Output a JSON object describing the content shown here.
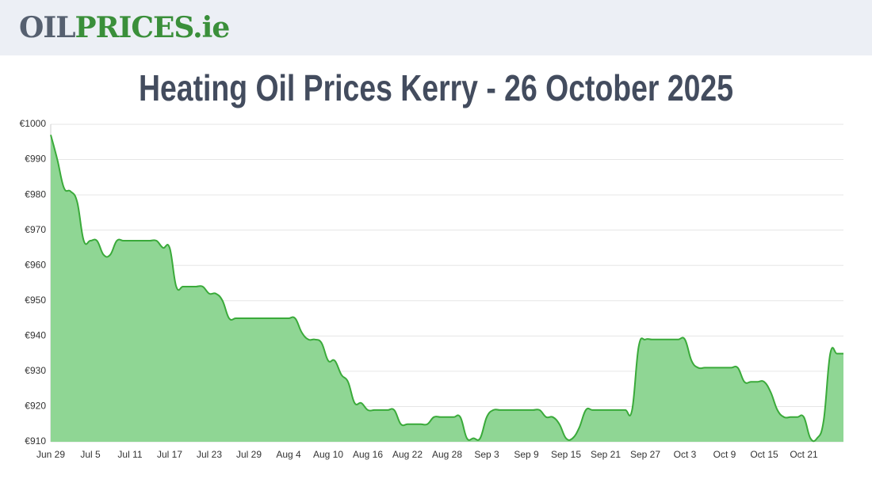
{
  "header": {
    "logo_main": "OIL",
    "logo_accent": "PRICES.ie"
  },
  "chart_data": {
    "type": "area",
    "title": "Heating Oil Prices Kerry - 26 October 2025",
    "color": "#3aaa3a",
    "fill": "#8fd694",
    "grid": true,
    "ylim": [
      910,
      1000
    ],
    "yticks": [
      {
        "value": 910,
        "label": "€910"
      },
      {
        "value": 920,
        "label": "€920"
      },
      {
        "value": 930,
        "label": "€930"
      },
      {
        "value": 940,
        "label": "€940"
      },
      {
        "value": 950,
        "label": "€950"
      },
      {
        "value": 960,
        "label": "€960"
      },
      {
        "value": 970,
        "label": "€970"
      },
      {
        "value": 980,
        "label": "€980"
      },
      {
        "value": 990,
        "label": "€990"
      },
      {
        "value": 1000,
        "label": "€1000"
      }
    ],
    "categories": [
      "Jun 29",
      null,
      null,
      null,
      null,
      null,
      "Jul 5",
      null,
      null,
      null,
      null,
      null,
      "Jul 11",
      null,
      null,
      null,
      null,
      null,
      "Jul 17",
      null,
      null,
      null,
      null,
      null,
      "Jul 23",
      null,
      null,
      null,
      null,
      null,
      "Jul 29",
      null,
      null,
      null,
      null,
      null,
      "Aug 4",
      null,
      null,
      null,
      null,
      null,
      "Aug 10",
      null,
      null,
      null,
      null,
      null,
      "Aug 16",
      null,
      null,
      null,
      null,
      null,
      "Aug 22",
      null,
      null,
      null,
      null,
      null,
      "Aug 28",
      null,
      null,
      null,
      null,
      null,
      "Sep 3",
      null,
      null,
      null,
      null,
      null,
      "Sep 9",
      null,
      null,
      null,
      null,
      null,
      "Sep 15",
      null,
      null,
      null,
      null,
      null,
      "Sep 21",
      null,
      null,
      null,
      null,
      null,
      "Sep 27",
      null,
      null,
      null,
      null,
      null,
      "Oct 3",
      null,
      null,
      null,
      null,
      null,
      "Oct 9",
      null,
      null,
      null,
      null,
      null,
      "Oct 15",
      null,
      null,
      null,
      null,
      null,
      "Oct 21",
      null,
      null,
      null,
      null,
      null,
      null
    ],
    "values": [
      997,
      990,
      982,
      981,
      978,
      967,
      967,
      967,
      963,
      963,
      967,
      967,
      967,
      967,
      967,
      967,
      967,
      965,
      965,
      954,
      954,
      954,
      954,
      954,
      952,
      952,
      950,
      945,
      945,
      945,
      945,
      945,
      945,
      945,
      945,
      945,
      945,
      945,
      941,
      939,
      939,
      938,
      933,
      933,
      929,
      927,
      921,
      921,
      919,
      919,
      919,
      919,
      919,
      915,
      915,
      915,
      915,
      915,
      917,
      917,
      917,
      917,
      917,
      911,
      911,
      911,
      917,
      919,
      919,
      919,
      919,
      919,
      919,
      919,
      919,
      917,
      917,
      915,
      911,
      911,
      914,
      919,
      919,
      919,
      919,
      919,
      919,
      919,
      919,
      937,
      939,
      939,
      939,
      939,
      939,
      939,
      939,
      933,
      931,
      931,
      931,
      931,
      931,
      931,
      931,
      927,
      927,
      927,
      927,
      924,
      919,
      917,
      917,
      917,
      917,
      911,
      911,
      916,
      935,
      935,
      935
    ]
  }
}
